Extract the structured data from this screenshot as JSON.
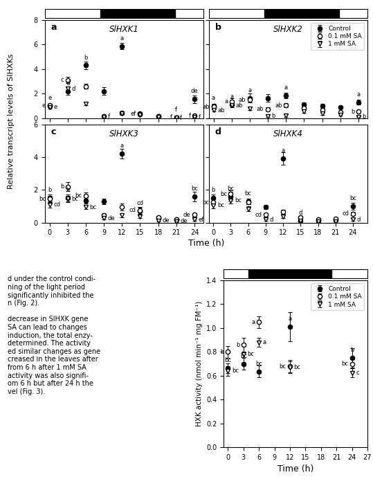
{
  "chart_data": [
    {
      "type": "scatter",
      "panel_label": "a",
      "title": "SlHXK1",
      "ylabel": "Relative transcript levels of SlHXKs",
      "x": [
        0,
        3,
        6,
        9,
        12,
        15,
        18,
        21,
        24
      ],
      "xlim": [
        -0.8,
        25.5
      ],
      "xticks": [
        0,
        3,
        6,
        9,
        12,
        15,
        18,
        21,
        24
      ],
      "ylim": [
        0,
        8
      ],
      "yticks": [
        0,
        2,
        4,
        6,
        8
      ],
      "tick_labels": "y",
      "night": [
        8.405,
        20.766
      ],
      "series": [
        {
          "name": "Control",
          "color": "black",
          "marker": "filled_circle",
          "values": [
            1.0,
            2.2,
            4.3,
            2.2,
            5.85,
            0.4,
            0.15,
            0.05,
            1.55
          ],
          "errors": [
            0.1,
            0.3,
            0.3,
            0.3,
            0.25,
            0.1,
            0.05,
            0.05,
            0.3
          ],
          "point_labels": [
            "e",
            "d",
            "b",
            null,
            "a",
            null,
            null,
            "f",
            "de"
          ]
        },
        {
          "name": "0.1 mM SA",
          "color": "black",
          "marker": "open_circle",
          "values": [
            1.05,
            3.1,
            2.6,
            0.15,
            0.45,
            0.35,
            0.18,
            0.05,
            0.2
          ],
          "errors": [
            0.1,
            0.25,
            0.2,
            0.07,
            0.12,
            0.08,
            0.05,
            0.03,
            0.05
          ],
          "point_labels": [
            "e",
            "c",
            null,
            null,
            null,
            "ef",
            null,
            "f",
            "f"
          ]
        },
        {
          "name": "1 mM SA",
          "color": "black",
          "marker": "open_triangle_down",
          "values": [
            0.9,
            2.4,
            1.2,
            0.12,
            0.38,
            0.28,
            0.12,
            0.04,
            0.1
          ],
          "errors": [
            0.12,
            0.2,
            0.15,
            0.04,
            0.08,
            0.05,
            0.04,
            0.03,
            0.04
          ],
          "point_labels": [
            "e",
            "d",
            null,
            "f",
            null,
            null,
            null,
            "f",
            "f"
          ]
        }
      ]
    },
    {
      "type": "scatter",
      "panel_label": "b",
      "title": "SlHXK2",
      "x": [
        0,
        3,
        6,
        9,
        12,
        15,
        18,
        21,
        24
      ],
      "xlim": [
        -0.8,
        25.5
      ],
      "xticks": [
        0,
        3,
        6,
        9,
        12,
        15,
        18,
        21,
        24
      ],
      "ylim": [
        0,
        8
      ],
      "yticks": [
        0,
        2,
        4,
        6,
        8
      ],
      "tick_labels": false,
      "night": [
        8.405,
        20.766
      ],
      "legend": "upper right",
      "series": [
        {
          "name": "Control",
          "color": "black",
          "marker": "filled_circle",
          "values": [
            1.0,
            1.1,
            1.65,
            1.65,
            1.85,
            1.1,
            1.0,
            0.9,
            1.3
          ],
          "errors": [
            0.15,
            0.2,
            0.35,
            0.3,
            0.2,
            0.2,
            0.15,
            0.1,
            0.2
          ],
          "point_labels": [
            "a",
            "a",
            "a",
            null,
            "a",
            null,
            null,
            null,
            "a"
          ]
        },
        {
          "name": "0.1 mM SA",
          "color": "black",
          "marker": "open_circle",
          "values": [
            0.95,
            1.35,
            1.5,
            0.75,
            1.05,
            0.85,
            0.65,
            0.48,
            0.55
          ],
          "errors": [
            0.12,
            0.28,
            0.22,
            0.12,
            0.18,
            0.12,
            0.1,
            0.1,
            0.1
          ],
          "point_labels": [
            "ab",
            "a",
            "ab",
            "ab",
            "ab",
            null,
            null,
            null,
            "b"
          ]
        },
        {
          "name": "1 mM SA",
          "color": "black",
          "marker": "open_triangle_down",
          "values": [
            0.65,
            1.05,
            0.8,
            0.18,
            0.22,
            0.55,
            0.38,
            0.28,
            0.13
          ],
          "errors": [
            0.1,
            0.18,
            0.13,
            0.08,
            0.09,
            0.1,
            0.09,
            0.08,
            0.05
          ],
          "point_labels": [
            "ab",
            "ab",
            null,
            "b",
            null,
            null,
            null,
            null,
            "b"
          ]
        }
      ]
    },
    {
      "type": "scatter",
      "panel_label": "c",
      "title": "SlHXK3",
      "xlabel": "Time (h)",
      "x": [
        0,
        3,
        6,
        9,
        12,
        15,
        18,
        21,
        24
      ],
      "xlim": [
        -0.8,
        25.5
      ],
      "xticks": [
        0,
        3,
        6,
        9,
        12,
        15,
        18,
        21,
        24
      ],
      "ylim": [
        0,
        6
      ],
      "yticks": [
        0,
        2,
        4,
        6
      ],
      "series": [
        {
          "name": "Control",
          "color": "black",
          "marker": "filled_circle",
          "values": [
            1.5,
            1.5,
            1.35,
            1.3,
            4.2,
            0.7,
            0.3,
            0.2,
            1.6
          ],
          "errors": [
            0.2,
            0.22,
            0.2,
            0.18,
            0.3,
            0.2,
            0.1,
            0.1,
            0.3
          ],
          "point_labels": [
            "b",
            "b",
            null,
            null,
            "a",
            "cd",
            null,
            null,
            "bc"
          ]
        },
        {
          "name": "0.1 mM SA",
          "color": "black",
          "marker": "open_circle",
          "values": [
            1.45,
            2.2,
            1.65,
            0.45,
            0.95,
            0.75,
            0.32,
            0.18,
            0.48
          ],
          "errors": [
            0.18,
            0.28,
            0.18,
            0.13,
            0.22,
            0.2,
            0.1,
            0.08,
            0.1
          ],
          "point_labels": [
            "bc",
            "b",
            "bc",
            null,
            null,
            "cd",
            null,
            null,
            "de"
          ]
        },
        {
          "name": "1 mM SA",
          "color": "black",
          "marker": "open_triangle_down",
          "values": [
            1.1,
            1.45,
            0.95,
            0.28,
            0.45,
            0.38,
            0.13,
            0.09,
            0.18
          ],
          "errors": [
            0.18,
            0.18,
            0.13,
            0.08,
            0.13,
            0.1,
            0.05,
            0.05,
            0.05
          ],
          "point_labels": [
            "cd",
            "bc",
            "bc",
            "de",
            null,
            null,
            "de",
            "de",
            "ef"
          ]
        }
      ]
    },
    {
      "type": "scatter",
      "panel_label": "d",
      "title": "SlHXK4",
      "x": [
        0,
        3,
        6,
        9,
        12,
        15,
        18,
        21,
        24
      ],
      "xlim": [
        -0.8,
        26.5
      ],
      "xticks": [
        0,
        3,
        6,
        9,
        12,
        15,
        18,
        21,
        24
      ],
      "ylim": [
        0,
        6
      ],
      "yticks": [
        0,
        2,
        4,
        6
      ],
      "tick_labels": "x",
      "series": [
        {
          "name": "Control",
          "color": "black",
          "marker": "filled_circle",
          "values": [
            1.5,
            1.6,
            1.3,
            0.95,
            3.9,
            0.1,
            0.1,
            0.14,
            1.0
          ],
          "errors": [
            0.2,
            0.28,
            0.18,
            0.13,
            0.38,
            0.05,
            0.05,
            0.08,
            0.2
          ],
          "point_labels": [
            "b",
            "bc",
            "bc",
            null,
            "a",
            "d",
            null,
            null,
            "bc"
          ]
        },
        {
          "name": "0.1 mM SA",
          "color": "black",
          "marker": "open_circle",
          "values": [
            1.25,
            1.75,
            1.25,
            0.48,
            0.65,
            0.32,
            0.18,
            0.22,
            0.55
          ],
          "errors": [
            0.18,
            0.22,
            0.13,
            0.1,
            0.13,
            0.1,
            0.09,
            0.09,
            0.1
          ],
          "point_labels": [
            "bc",
            "bc",
            null,
            "cd",
            null,
            null,
            null,
            null,
            "cd"
          ]
        },
        {
          "name": "1 mM SA",
          "color": "black",
          "marker": "open_triangle_down",
          "values": [
            1.05,
            1.35,
            0.85,
            0.18,
            0.38,
            0.13,
            0.09,
            0.09,
            0.18
          ],
          "errors": [
            0.18,
            0.18,
            0.13,
            0.05,
            0.1,
            0.05,
            0.04,
            0.04,
            0.05
          ],
          "point_labels": [
            "bc",
            "bc",
            null,
            "d",
            null,
            null,
            null,
            null,
            "d"
          ]
        }
      ]
    },
    {
      "type": "scatter",
      "xlabel": "Time (h)",
      "ylabel": "HXK activity (nmol min⁻¹ mg FM⁻¹)",
      "x": [
        0,
        3,
        6,
        12,
        24
      ],
      "xlim": [
        -0.8,
        27
      ],
      "xticks": [
        0,
        3,
        6,
        9,
        12,
        15,
        18,
        21,
        24,
        27
      ],
      "ylim": [
        0,
        1.4
      ],
      "yticks": [
        {
          "value": 0,
          "label": "0.0"
        },
        0.2,
        0.4,
        0.6,
        0.8,
        {
          "value": 1,
          "label": "1.0"
        },
        1.2,
        1.4
      ],
      "night": [
        3.926,
        20.05
      ],
      "legend": "upper right",
      "series": [
        {
          "name": "Control",
          "color": "black",
          "marker": "filled_circle",
          "values": [
            0.665,
            0.7,
            0.635,
            1.01,
            0.75
          ],
          "errors": [
            0.04,
            0.05,
            0.05,
            0.12,
            0.08
          ],
          "point_labels": [
            "bc",
            "bc",
            "bc",
            "a",
            "b"
          ]
        },
        {
          "name": "0.1 mM SA",
          "color": "black",
          "marker": "open_circle",
          "values": [
            0.8,
            0.86,
            1.05,
            0.68,
            0.7
          ],
          "errors": [
            0.05,
            0.06,
            0.05,
            0.05,
            0.04
          ],
          "point_labels": [
            "b",
            "b",
            "a",
            "bc",
            "bc"
          ]
        },
        {
          "name": "1 mM SA",
          "color": "black",
          "marker": "open_triangle_down",
          "values": [
            0.64,
            0.78,
            0.88,
            0.67,
            0.625
          ],
          "errors": [
            0.04,
            0.07,
            0.04,
            0.05,
            0.035
          ],
          "point_labels": [
            "bc",
            "bc",
            "a",
            "bc",
            "c"
          ]
        }
      ]
    }
  ],
  "annotations": [
    "d under the control condi-\nning of the light period\nsignificantly inhibited the\nn (Fig. 2).\n\ndecrease in SlHXK gene\nSA can lead to changes\ninduction, the total enzy-\ndetermined. The activity\ned similar changes as gene\ncreased in the leaves after\nfrom 6 h after 1 mM SA\nactivity was also signifi-\nom 6 h but after 24 h the\nvel (Fig. 3)."
  ]
}
